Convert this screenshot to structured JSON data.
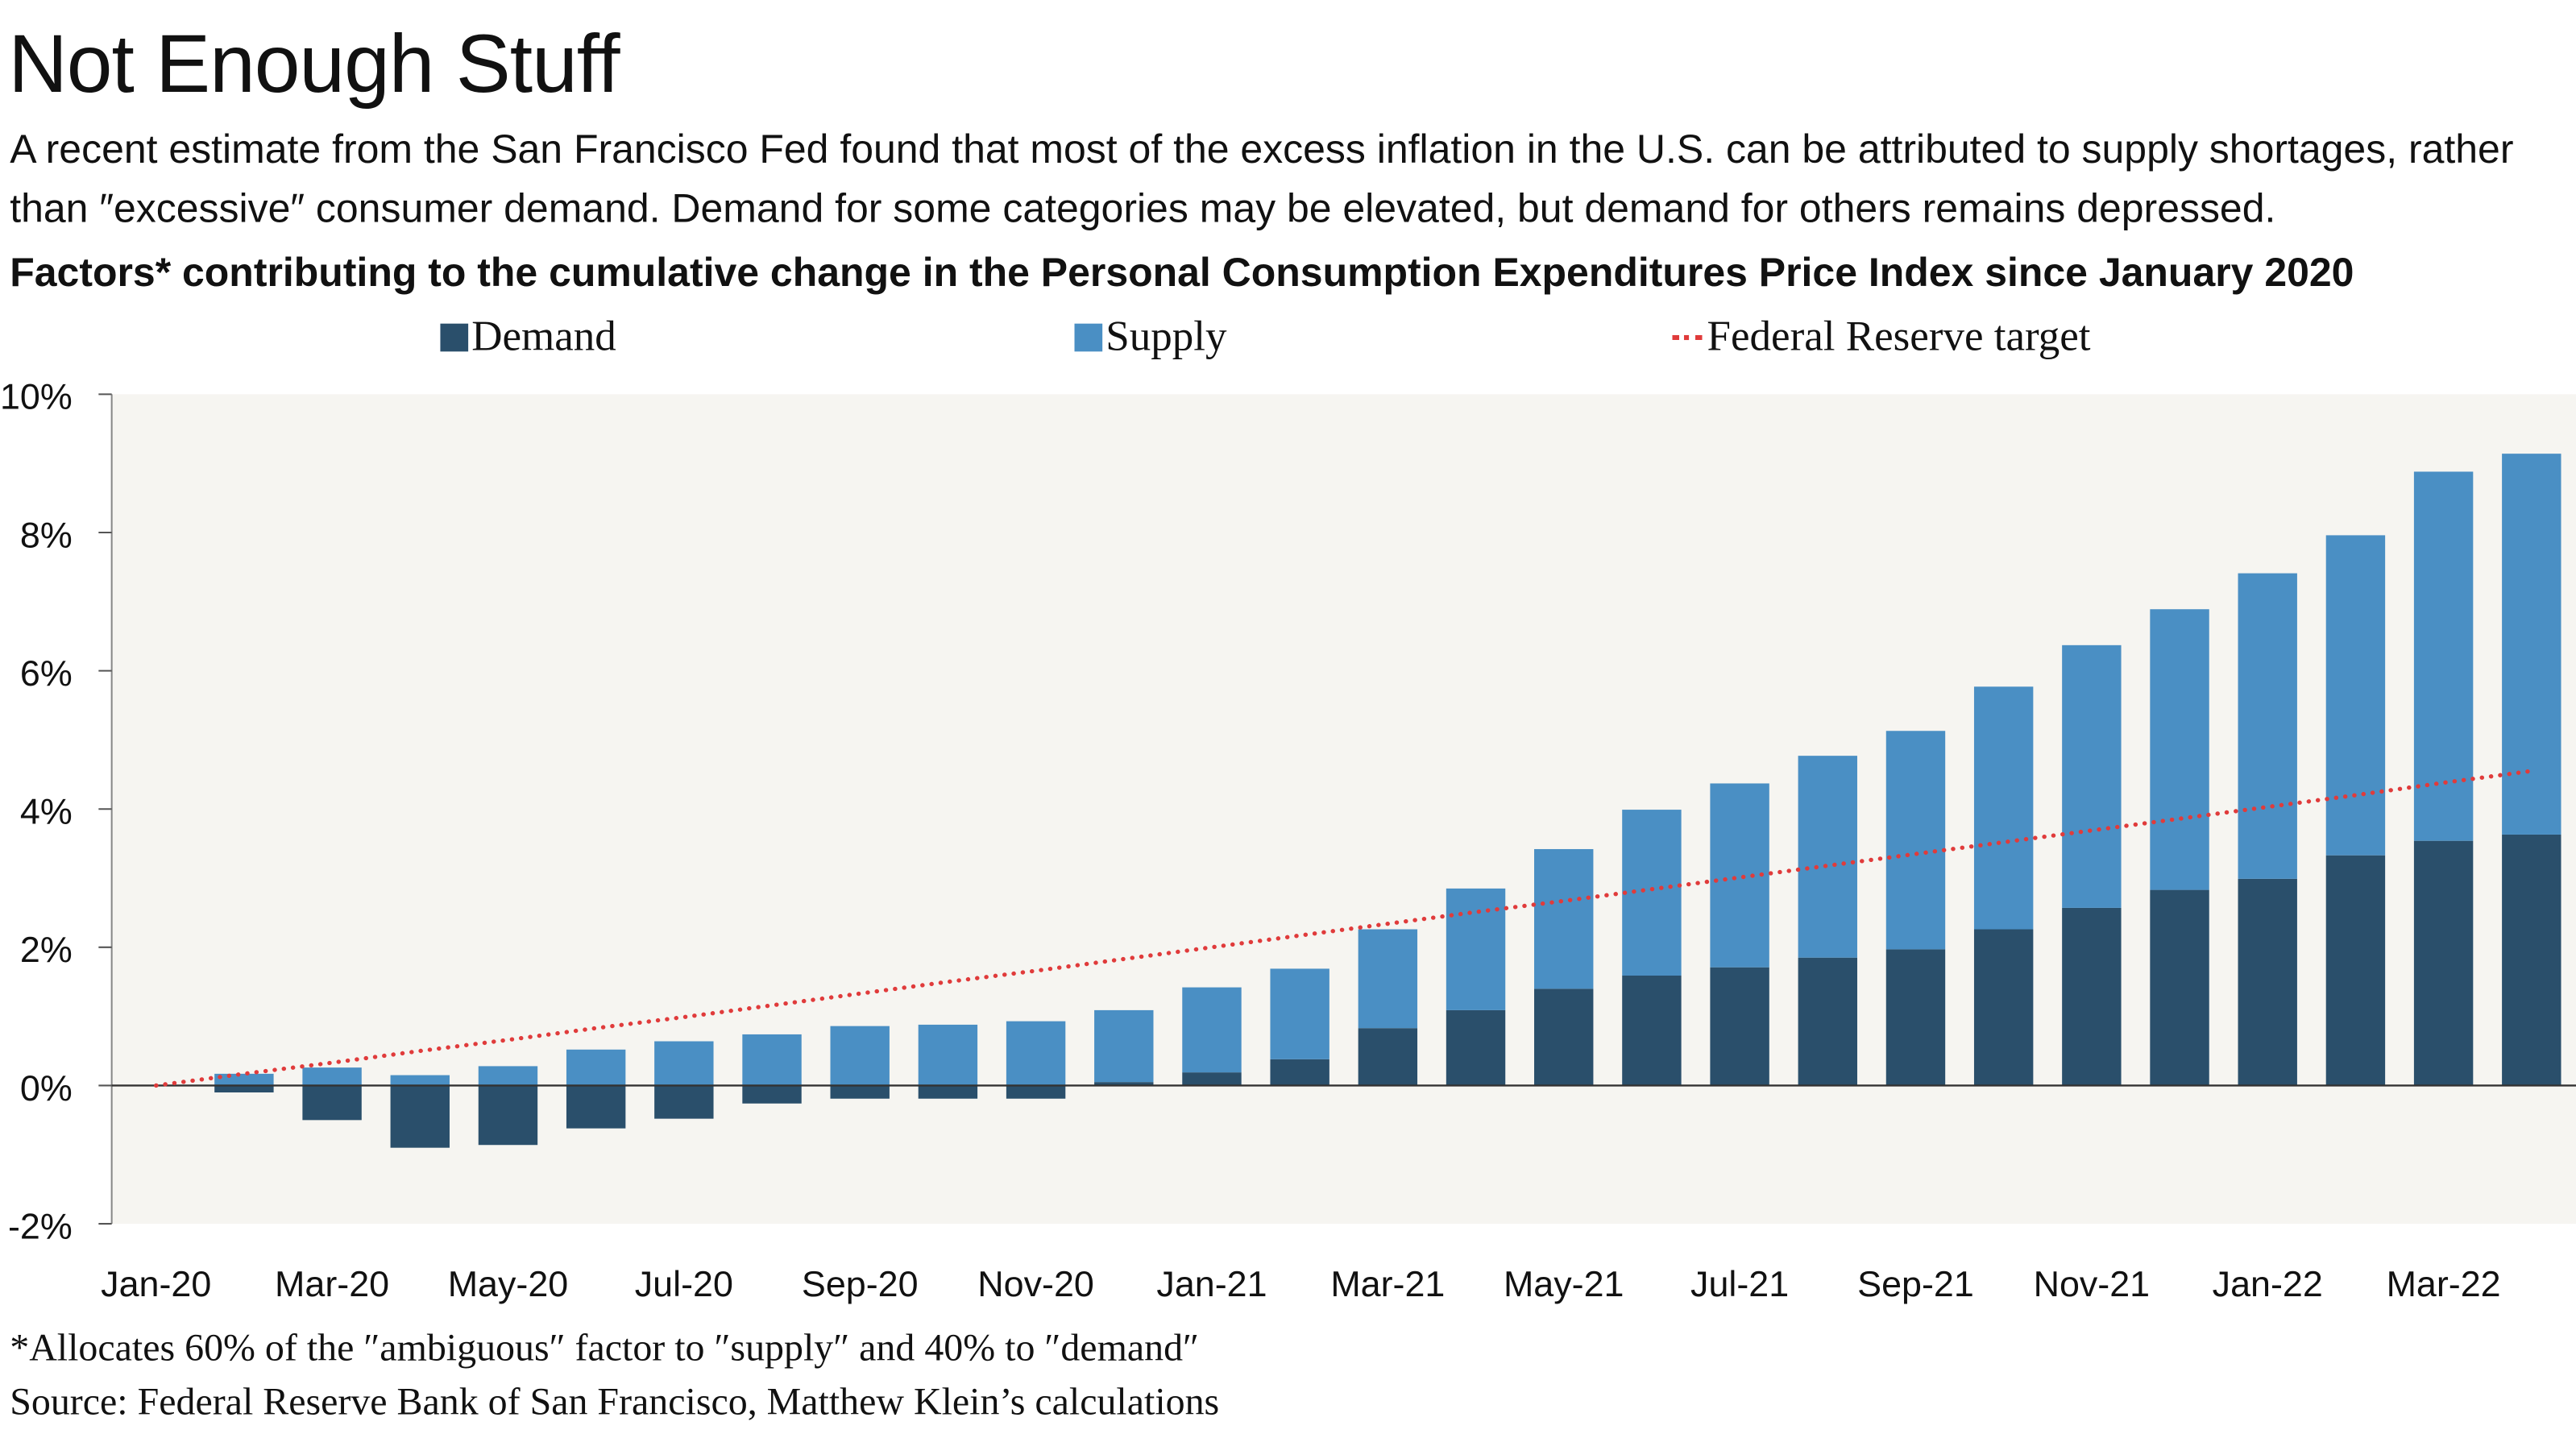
{
  "title": "Not Enough Stuff",
  "subtitle": "A recent estimate from the San Francisco Fed found that most of the excess inflation in the U.S. can be attributed to supply shortages, rather than ″excessive″ consumer demand. Demand for some categories may be elevated, but demand for others remains depressed.",
  "footnote": "*Allocates 60% of the ″ambiguous″ factor to ″supply″ and 40% to ″demand″",
  "source": "Source: Federal Reserve Bank of San Francisco, Matthew Klein’s calculations",
  "chart_data": {
    "type": "bar",
    "stacked": true,
    "title": "Factors* contributing to the cumulative change in the Personal Consumption Expenditures Price Index since January 2020",
    "xlabel": "",
    "ylabel": "",
    "ylim": [
      -2,
      10
    ],
    "yticks": [
      "-2%",
      "0%",
      "2%",
      "4%",
      "6%",
      "8%",
      "10%"
    ],
    "ytick_values": [
      -2,
      0,
      2,
      4,
      6,
      8,
      10
    ],
    "legend_position": "top",
    "grid": false,
    "categories": [
      "Jan-20",
      "Feb-20",
      "Mar-20",
      "Apr-20",
      "May-20",
      "Jun-20",
      "Jul-20",
      "Aug-20",
      "Sep-20",
      "Oct-20",
      "Nov-20",
      "Dec-20",
      "Jan-21",
      "Feb-21",
      "Mar-21",
      "Apr-21",
      "May-21",
      "Jun-21",
      "Jul-21",
      "Aug-21",
      "Sep-21",
      "Oct-21",
      "Nov-21",
      "Dec-21",
      "Jan-22",
      "Feb-22",
      "Mar-22",
      "Apr-22"
    ],
    "xtick_labels": [
      "Jan-20",
      "Mar-20",
      "May-20",
      "Jul-20",
      "Sep-20",
      "Nov-20",
      "Jan-21",
      "Mar-21",
      "May-21",
      "Jul-21",
      "Sep-21",
      "Nov-21",
      "Jan-22",
      "Mar-22"
    ],
    "series": [
      {
        "name": "Demand",
        "color": "#2a4f6b",
        "type": "bar",
        "values": [
          0,
          -0.1,
          -0.5,
          -0.9,
          -0.86,
          -0.62,
          -0.48,
          -0.26,
          -0.19,
          -0.19,
          -0.19,
          0.05,
          0.19,
          0.38,
          0.83,
          1.09,
          1.4,
          1.59,
          1.71,
          1.85,
          1.97,
          2.26,
          2.57,
          2.83,
          2.99,
          3.33,
          3.54,
          3.63
        ]
      },
      {
        "name": "Supply",
        "color": "#4a8fc4",
        "type": "bar",
        "values": [
          0,
          0.17,
          0.26,
          0.15,
          0.28,
          0.52,
          0.64,
          0.74,
          0.86,
          0.88,
          0.93,
          1.04,
          1.23,
          1.31,
          1.43,
          1.76,
          2.02,
          2.4,
          2.66,
          2.92,
          3.16,
          3.51,
          3.8,
          4.06,
          4.42,
          4.63,
          5.34,
          5.51
        ]
      },
      {
        "name": "Federal Reserve target",
        "color": "#e03b3b",
        "type": "line",
        "style": "dotted",
        "values": [
          0,
          0.17,
          0.33,
          0.5,
          0.66,
          0.83,
          0.99,
          1.16,
          1.33,
          1.5,
          1.66,
          1.83,
          2.0,
          2.17,
          2.34,
          2.51,
          2.67,
          2.84,
          3.01,
          3.18,
          3.35,
          3.52,
          3.69,
          3.86,
          4.03,
          4.2,
          4.38,
          4.55
        ]
      }
    ]
  }
}
